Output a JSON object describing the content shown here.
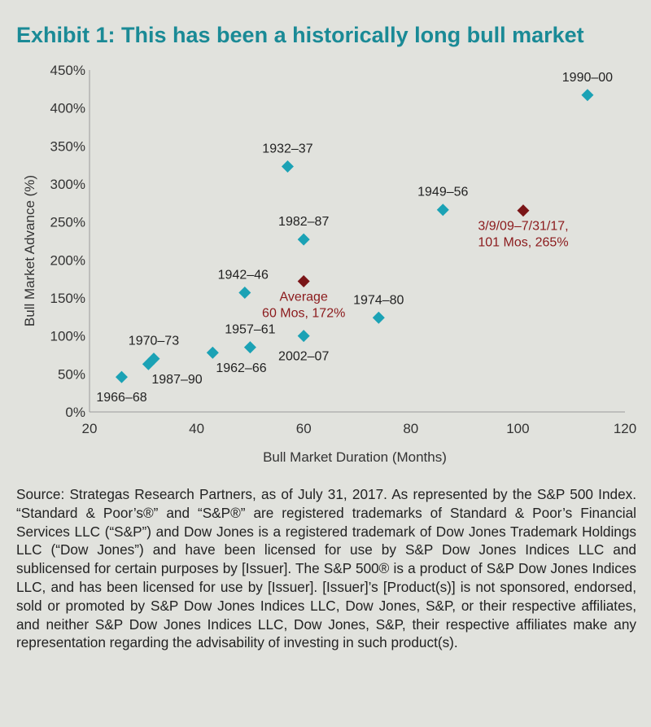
{
  "title": "Exhibit 1: This has been a historically long bull market",
  "colors": {
    "title": "#1a8a96",
    "points": "#1ba2b5",
    "highlight": "#7a1517",
    "highlight_label": "#8b1a1c",
    "background": "#e1e2dd"
  },
  "chart_data": {
    "type": "scatter",
    "xlabel": "Bull Market Duration (Months)",
    "ylabel": "Bull Market Advance (%)",
    "xlim": [
      20,
      120
    ],
    "ylim": [
      0,
      450
    ],
    "x_ticks": [
      "20",
      "40",
      "60",
      "80",
      "100",
      "120"
    ],
    "y_ticks": [
      "0%",
      "50%",
      "100%",
      "150%",
      "200%",
      "250%",
      "300%",
      "350%",
      "400%",
      "450%"
    ],
    "grid": false,
    "points": [
      {
        "label": "1966–68",
        "x": 26,
        "y": 46,
        "label_pos": "below"
      },
      {
        "label": "1987–90",
        "x": 31,
        "y": 63,
        "label_pos": "below-right"
      },
      {
        "label": "1970–73",
        "x": 32,
        "y": 70,
        "label_pos": "above"
      },
      {
        "label": "1962–66",
        "x": 43,
        "y": 78,
        "label_pos": "below-right"
      },
      {
        "label": "1942–46",
        "x": 49,
        "y": 157,
        "label_pos": "above-left"
      },
      {
        "label": "1957–61",
        "x": 50,
        "y": 85,
        "label_pos": "above"
      },
      {
        "label": "1932–37",
        "x": 57,
        "y": 323,
        "label_pos": "above"
      },
      {
        "label": "1982–87",
        "x": 60,
        "y": 227,
        "label_pos": "above"
      },
      {
        "label": "2002–07",
        "x": 60,
        "y": 100,
        "label_pos": "below"
      },
      {
        "label": "1974–80",
        "x": 74,
        "y": 124,
        "label_pos": "above"
      },
      {
        "label": "1949–56",
        "x": 86,
        "y": 266,
        "label_pos": "above"
      },
      {
        "label": "1990–00",
        "x": 113,
        "y": 417,
        "label_pos": "above"
      }
    ],
    "highlights": [
      {
        "label_lines": [
          "Average",
          "60 Mos, 172%"
        ],
        "x": 60,
        "y": 172,
        "label_pos": "below"
      },
      {
        "label_lines": [
          "3/9/09–7/31/17,",
          "101 Mos, 265%"
        ],
        "x": 101,
        "y": 265,
        "label_pos": "below"
      }
    ]
  },
  "source_note": "Source: Strategas Research Partners, as of July 31, 2017. As represented by the S&P 500 Index. “Standard & Poor’s®” and “S&P®” are registered trademarks of Standard & Poor’s Financial Services LLC (“S&P”) and Dow Jones is a registered trademark of Dow Jones Trademark Holdings LLC (“Dow Jones”) and have been licensed for use by S&P Dow Jones Indices LLC and sublicensed for certain purposes by [Issuer]. The S&P 500® is a product of S&P Dow Jones Indices LLC, and has been licensed for use by [Issuer]. [Issuer]’s [Product(s)] is not sponsored, endorsed, sold or promoted by S&P Dow Jones Indices LLC, Dow Jones, S&P, or their respective affiliates, and neither S&P Dow Jones Indices LLC, Dow Jones, S&P, their respective affiliates make any representation regarding the advisability of investing in such product(s)."
}
